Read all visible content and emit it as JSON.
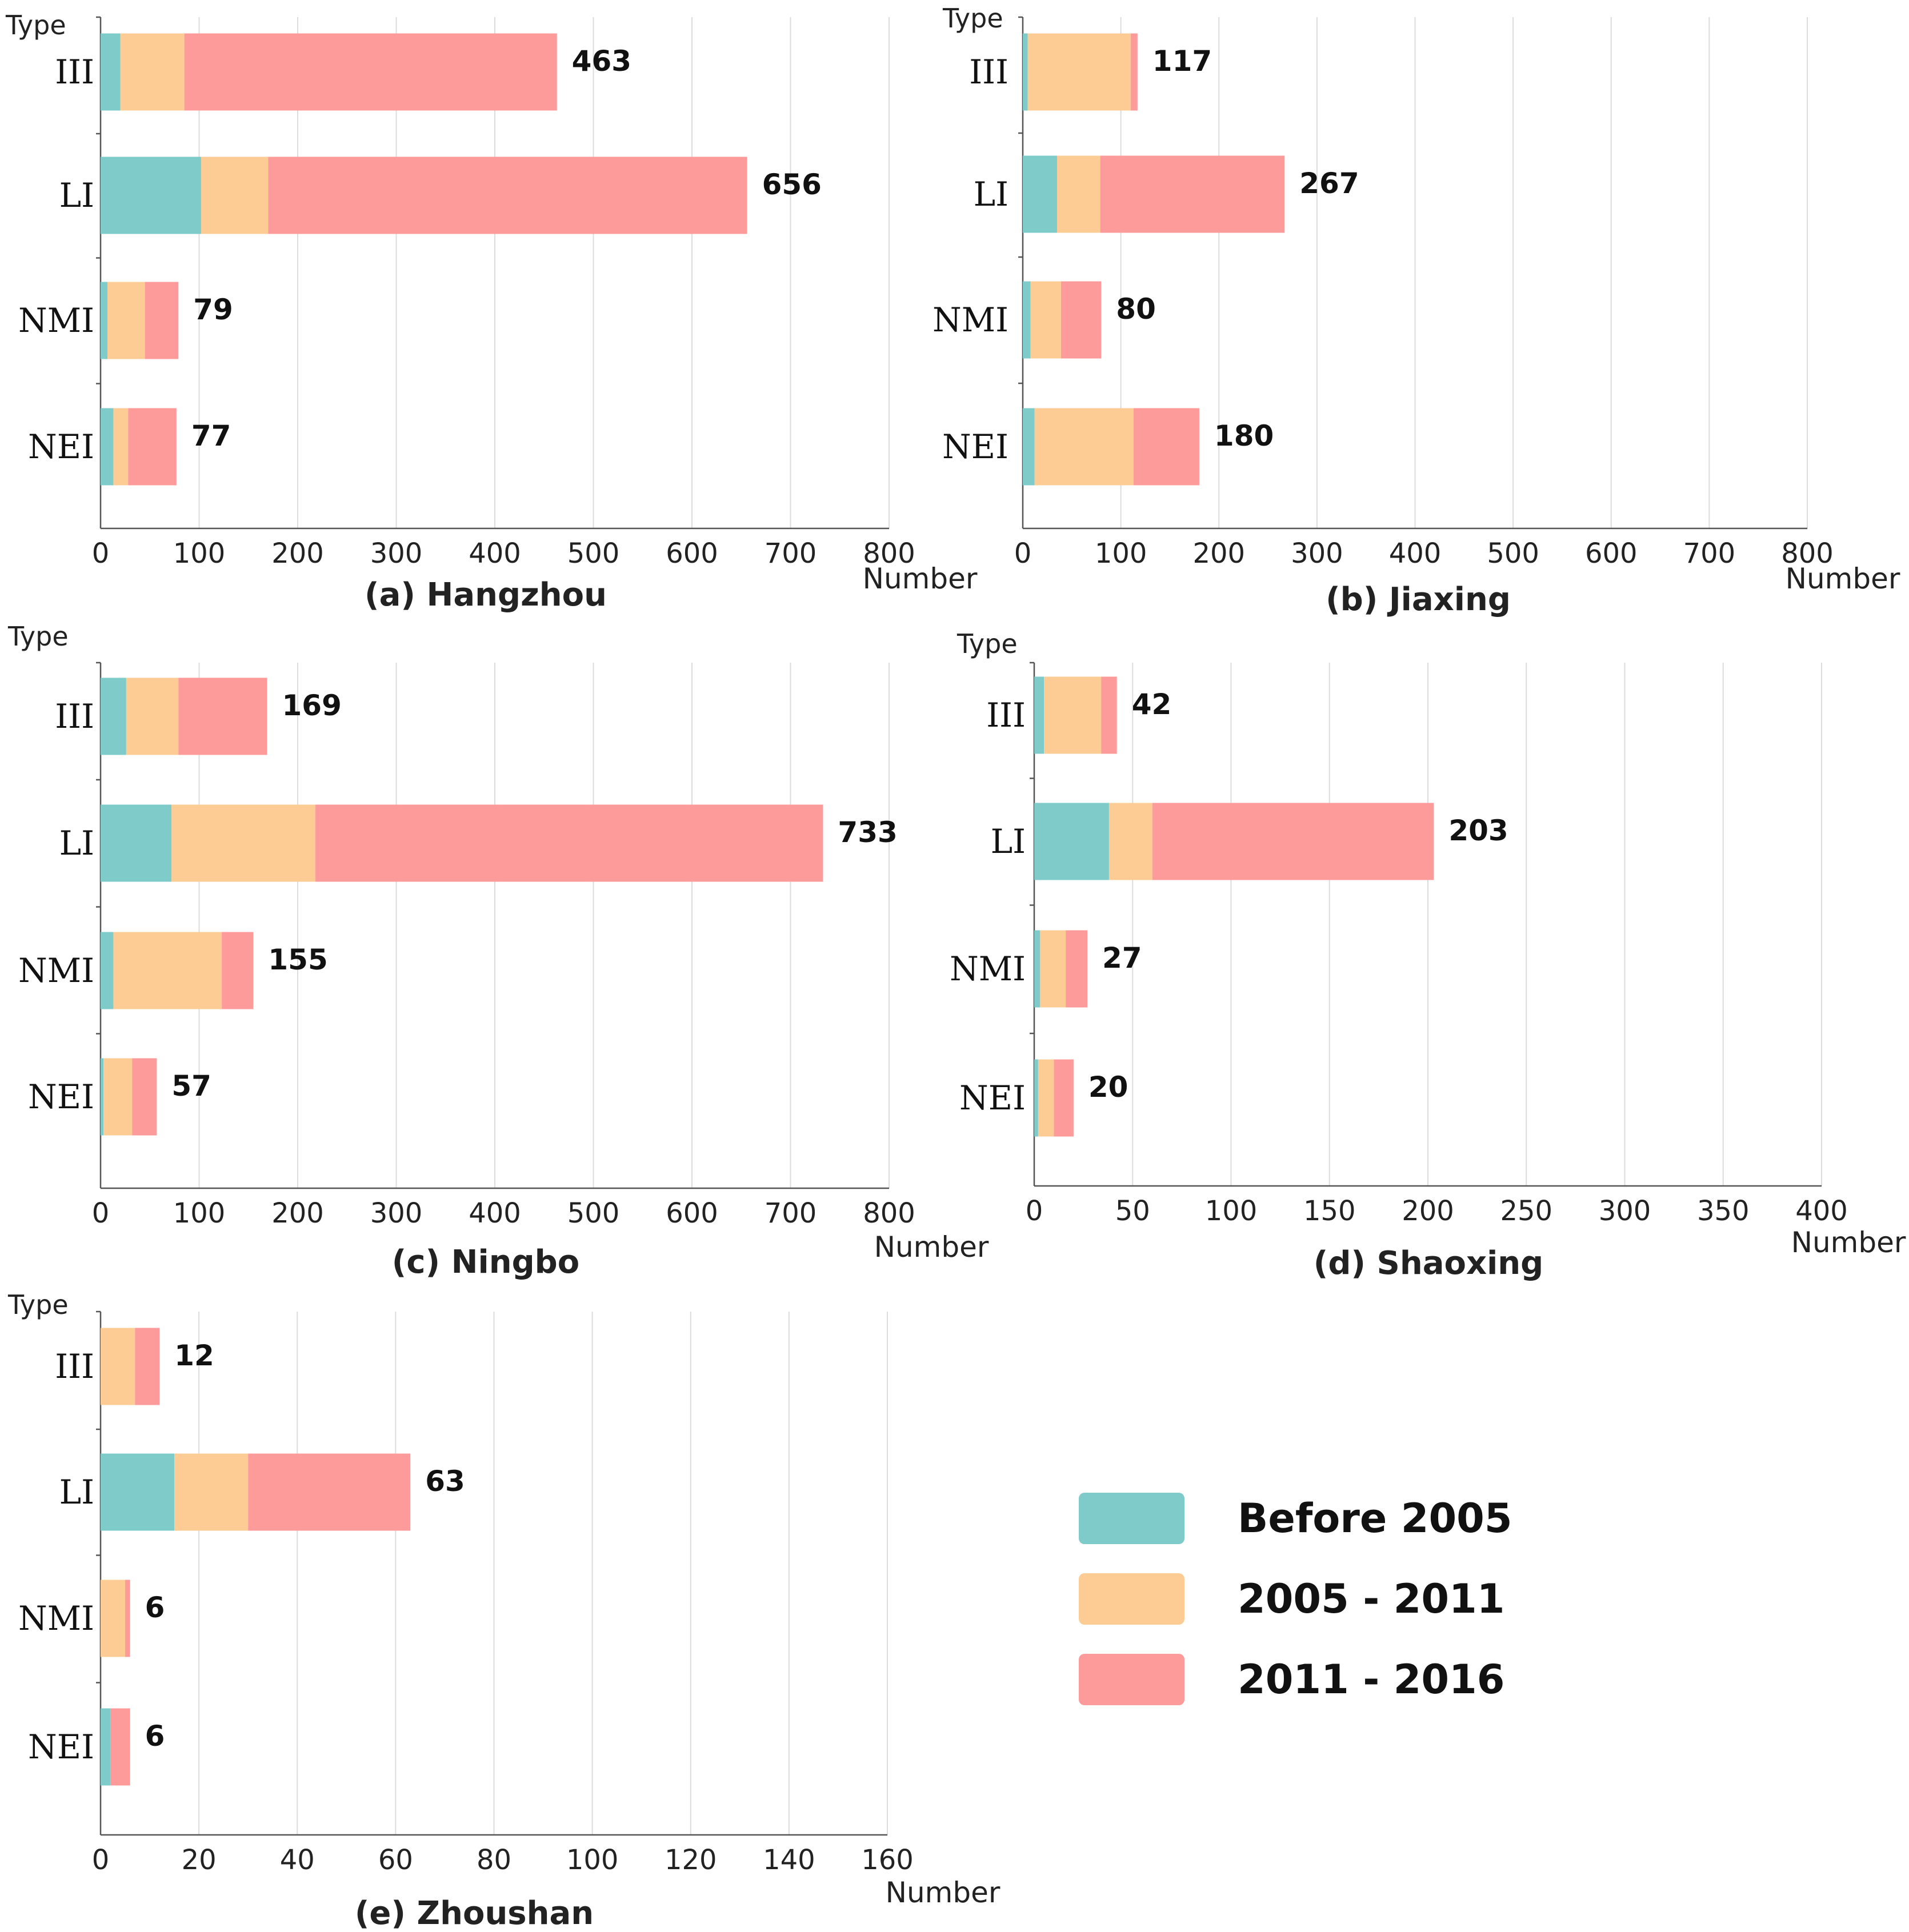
{
  "legend": [
    {
      "label": "Before 2005",
      "color": "#7ecbc9"
    },
    {
      "label": "2005 - 2011",
      "color": "#fdcc95"
    },
    {
      "label": "2011 - 2016",
      "color": "#fd9a9a"
    }
  ],
  "chart_data": [
    {
      "type": "bar",
      "orientation": "horizontal",
      "stacked": true,
      "title": "(a) Hangzhou",
      "xlabel": "Number",
      "ylabel": "Type",
      "xlim": [
        0,
        800
      ],
      "xticks": [
        "0",
        "100",
        "200",
        "300",
        "400",
        "500",
        "600",
        "700",
        "800"
      ],
      "categories": [
        "III",
        "LI",
        "NMI",
        "NEI"
      ],
      "series": [
        {
          "name": "Before 2005",
          "values": [
            20,
            102,
            7,
            13
          ]
        },
        {
          "name": "2005 - 2011",
          "values": [
            65,
            68,
            38,
            15
          ]
        },
        {
          "name": "2011 - 2016",
          "values": [
            378,
            486,
            34,
            49
          ]
        }
      ],
      "totals": [
        "463",
        "656",
        "79",
        "77"
      ],
      "grid": true
    },
    {
      "type": "bar",
      "orientation": "horizontal",
      "stacked": true,
      "title": "(b) Jiaxing",
      "xlabel": "Number",
      "ylabel": "Type",
      "xlim": [
        0,
        800
      ],
      "xticks": [
        "0",
        "100",
        "200",
        "300",
        "400",
        "500",
        "600",
        "700",
        "800"
      ],
      "categories": [
        "III",
        "LI",
        "NMI",
        "NEI"
      ],
      "series": [
        {
          "name": "Before 2005",
          "values": [
            5,
            35,
            8,
            12
          ]
        },
        {
          "name": "2005 - 2011",
          "values": [
            105,
            44,
            31,
            101
          ]
        },
        {
          "name": "2011 - 2016",
          "values": [
            7,
            188,
            41,
            67
          ]
        }
      ],
      "totals": [
        "117",
        "267",
        "80",
        "180"
      ],
      "grid": true
    },
    {
      "type": "bar",
      "orientation": "horizontal",
      "stacked": true,
      "title": "(c) Ningbo",
      "xlabel": "Number",
      "ylabel": "Type",
      "xlim": [
        0,
        800
      ],
      "xticks": [
        "0",
        "100",
        "200",
        "300",
        "400",
        "500",
        "600",
        "700",
        "800"
      ],
      "categories": [
        "III",
        "LI",
        "NMI",
        "NEI"
      ],
      "series": [
        {
          "name": "Before 2005",
          "values": [
            26,
            72,
            13,
            3
          ]
        },
        {
          "name": "2005 - 2011",
          "values": [
            53,
            146,
            110,
            29
          ]
        },
        {
          "name": "2011 - 2016",
          "values": [
            90,
            515,
            32,
            25
          ]
        }
      ],
      "totals": [
        "169",
        "733",
        "155",
        "57"
      ],
      "grid": true
    },
    {
      "type": "bar",
      "orientation": "horizontal",
      "stacked": true,
      "title": "(d) Shaoxing",
      "xlabel": "Number",
      "ylabel": "Type",
      "xlim": [
        0,
        400
      ],
      "xticks": [
        "0",
        "50",
        "100",
        "150",
        "200",
        "250",
        "300",
        "350",
        "400"
      ],
      "categories": [
        "III",
        "LI",
        "NMI",
        "NEI"
      ],
      "series": [
        {
          "name": "Before 2005",
          "values": [
            5,
            38,
            3,
            2
          ]
        },
        {
          "name": "2005 - 2011",
          "values": [
            29,
            22,
            13,
            8
          ]
        },
        {
          "name": "2011 - 2016",
          "values": [
            8,
            143,
            11,
            10
          ]
        }
      ],
      "totals": [
        "42",
        "203",
        "27",
        "20"
      ],
      "grid": true
    },
    {
      "type": "bar",
      "orientation": "horizontal",
      "stacked": true,
      "title": "(e) Zhoushan",
      "xlabel": "Number",
      "ylabel": "Type",
      "xlim": [
        0,
        160
      ],
      "xticks": [
        "0",
        "20",
        "40",
        "60",
        "80",
        "100",
        "120",
        "140",
        "160"
      ],
      "categories": [
        "III",
        "LI",
        "NMI",
        "NEI"
      ],
      "series": [
        {
          "name": "Before 2005",
          "values": [
            0,
            15,
            0,
            2
          ]
        },
        {
          "name": "2005 - 2011",
          "values": [
            7,
            15,
            5,
            0
          ]
        },
        {
          "name": "2011 - 2016",
          "values": [
            5,
            33,
            1,
            4
          ]
        }
      ],
      "totals": [
        "12",
        "63",
        "6",
        "6"
      ],
      "grid": true
    }
  ]
}
